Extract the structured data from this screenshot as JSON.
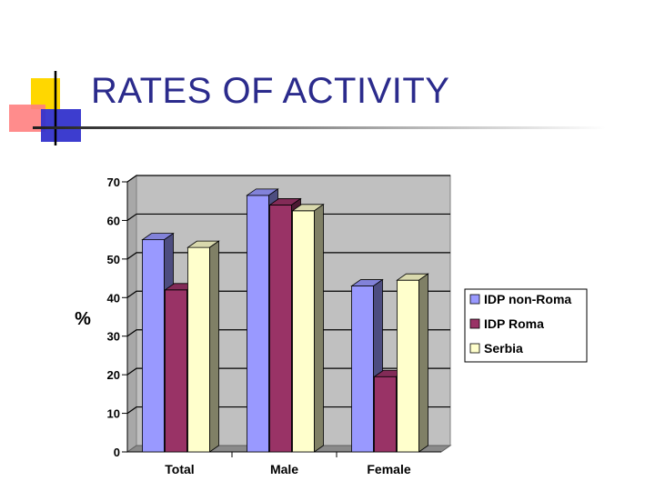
{
  "slide": {
    "title": "RATES OF ACTIVITY"
  },
  "colors": {
    "title": "#2b2b8c",
    "series": [
      "#9999ff",
      "#993366",
      "#ffffcc"
    ],
    "plot_bg": "#c0c0c0"
  },
  "chart_data": {
    "type": "bar",
    "title": "",
    "xlabel": "",
    "ylabel": "%",
    "ylim": [
      0,
      70
    ],
    "yticks": [
      "0",
      "10",
      "20",
      "30",
      "40",
      "50",
      "60",
      "70"
    ],
    "categories": [
      "Total",
      "Male",
      "Female"
    ],
    "series": [
      {
        "name": "IDP non-Roma",
        "values": [
          55,
          66.5,
          43
        ]
      },
      {
        "name": "IDP Roma",
        "values": [
          42,
          64,
          19.5
        ]
      },
      {
        "name": "Serbia",
        "values": [
          53,
          62.5,
          44.5
        ]
      }
    ],
    "grid": true,
    "legend": "right"
  }
}
